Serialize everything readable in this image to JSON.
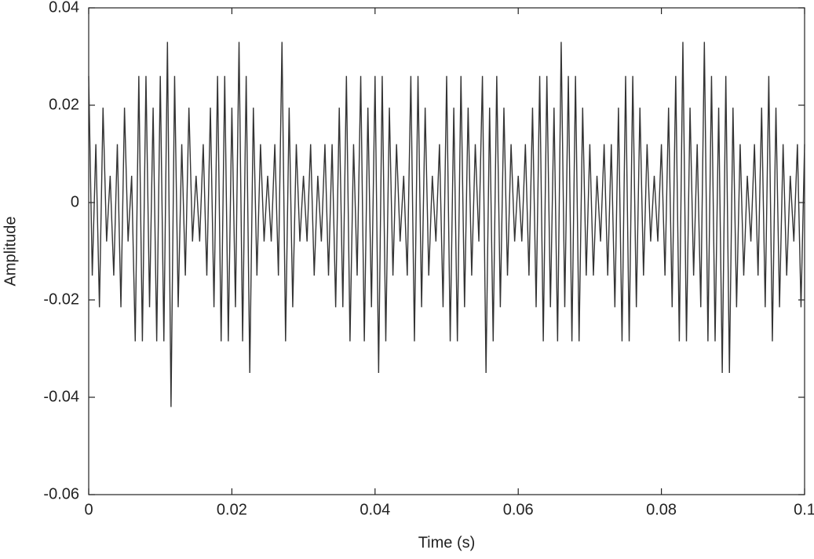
{
  "chart_data": {
    "type": "line",
    "xlabel": "Time (s)",
    "ylabel": "Amplitude",
    "color": "#333333",
    "xlim": [
      0,
      0.1
    ],
    "ylim": [
      -0.06,
      0.04
    ],
    "xticks": [
      0,
      0.02,
      0.04,
      0.06,
      0.08,
      0.1
    ],
    "yticks": [
      -0.06,
      -0.04,
      -0.02,
      0,
      0.02,
      0.04
    ],
    "x": [
      0,
      0.0005,
      0.001,
      0.0015,
      0.002,
      0.0025,
      0.003,
      0.0035,
      0.004,
      0.0045,
      0.005,
      0.0055,
      0.006,
      0.0065,
      0.007,
      0.0075,
      0.008,
      0.0085,
      0.009,
      0.0095,
      0.01,
      0.0105,
      0.011,
      0.0115,
      0.012,
      0.0125,
      0.013,
      0.0135,
      0.014,
      0.0145,
      0.015,
      0.0155,
      0.016,
      0.0165,
      0.017,
      0.0175,
      0.018,
      0.0185,
      0.019,
      0.0195,
      0.02,
      0.0205,
      0.021,
      0.0215,
      0.022,
      0.0225,
      0.023,
      0.0235,
      0.024,
      0.0245,
      0.025,
      0.0255,
      0.026,
      0.0265,
      0.027,
      0.0275,
      0.028,
      0.0285,
      0.029,
      0.0295,
      0.03,
      0.0305,
      0.031,
      0.0315,
      0.032,
      0.0325,
      0.033,
      0.0335,
      0.034,
      0.0345,
      0.035,
      0.0355,
      0.036,
      0.0365,
      0.037,
      0.0375,
      0.038,
      0.0385,
      0.039,
      0.0395,
      0.04,
      0.0405,
      0.041,
      0.0415,
      0.042,
      0.0425,
      0.043,
      0.0435,
      0.044,
      0.0445,
      0.045,
      0.0455,
      0.046,
      0.0465,
      0.047,
      0.0475,
      0.048,
      0.0485,
      0.049,
      0.0495,
      0.05,
      0.0505,
      0.051,
      0.0515,
      0.052,
      0.0525,
      0.053,
      0.0535,
      0.054,
      0.0545,
      0.055,
      0.0555,
      0.056,
      0.0565,
      0.057,
      0.0575,
      0.058,
      0.0585,
      0.059,
      0.0595,
      0.06,
      0.0605,
      0.061,
      0.0615,
      0.062,
      0.0625,
      0.063,
      0.0635,
      0.064,
      0.0645,
      0.065,
      0.0655,
      0.066,
      0.0665,
      0.067,
      0.0675,
      0.068,
      0.0685,
      0.069,
      0.0695,
      0.07,
      0.0705,
      0.071,
      0.0715,
      0.072,
      0.0725,
      0.073,
      0.0735,
      0.074,
      0.0745,
      0.075,
      0.0755,
      0.076,
      0.0765,
      0.077,
      0.0775,
      0.078,
      0.0785,
      0.079,
      0.0795,
      0.08,
      0.0805,
      0.081,
      0.0815,
      0.082,
      0.0825,
      0.083,
      0.0835,
      0.084,
      0.0845,
      0.085,
      0.0855,
      0.086,
      0.0865,
      0.087,
      0.0875,
      0.088,
      0.0885,
      0.089,
      0.0895,
      0.09,
      0.0905,
      0.091,
      0.0915,
      0.092,
      0.0925,
      0.093,
      0.0935,
      0.094,
      0.0945,
      0.095,
      0.0955,
      0.096,
      0.0965,
      0.097,
      0.0975,
      0.098,
      0.0985,
      0.099,
      0.0995,
      0.1
    ],
    "values": [
      0.026,
      -0.015,
      0.012,
      -0.0215,
      0.0195,
      -0.008,
      0.0055,
      -0.015,
      0.012,
      -0.0215,
      0.0195,
      -0.008,
      0.0055,
      -0.0285,
      0.026,
      -0.0285,
      0.026,
      -0.0215,
      0.0195,
      -0.0285,
      0.026,
      -0.0285,
      0.033,
      -0.042,
      0.026,
      -0.0215,
      0.012,
      -0.015,
      0.0195,
      -0.008,
      0.0055,
      -0.008,
      0.012,
      -0.015,
      0.0195,
      -0.0215,
      0.026,
      -0.0285,
      0.026,
      -0.0285,
      0.0195,
      -0.0215,
      0.033,
      -0.0285,
      0.026,
      -0.035,
      0.0195,
      -0.015,
      0.012,
      -0.008,
      0.0055,
      -0.008,
      0.012,
      -0.015,
      0.033,
      -0.0285,
      0.0195,
      -0.0215,
      0.012,
      -0.008,
      0.0055,
      -0.008,
      0.012,
      -0.015,
      0.0055,
      -0.008,
      0.012,
      -0.015,
      0.012,
      -0.0215,
      0.0195,
      -0.0215,
      0.026,
      -0.0285,
      0.012,
      -0.015,
      0.026,
      -0.0285,
      0.0195,
      -0.0215,
      0.026,
      -0.035,
      0.026,
      -0.0285,
      0.0195,
      -0.015,
      0.012,
      -0.008,
      0.0055,
      -0.015,
      0.026,
      -0.0285,
      0.026,
      -0.0215,
      0.0195,
      -0.015,
      0.0055,
      -0.008,
      0.012,
      -0.0215,
      0.026,
      -0.0285,
      0.0195,
      -0.0285,
      0.026,
      -0.0215,
      0.0195,
      -0.015,
      0.012,
      -0.008,
      0.026,
      -0.035,
      0.0195,
      -0.0285,
      0.026,
      -0.0215,
      0.0195,
      -0.015,
      0.012,
      -0.008,
      0.0055,
      -0.008,
      0.012,
      -0.015,
      0.0195,
      -0.0215,
      0.026,
      -0.0285,
      0.026,
      -0.0215,
      0.0195,
      -0.0285,
      0.033,
      -0.0215,
      0.026,
      -0.0285,
      0.026,
      -0.0285,
      0.0195,
      -0.015,
      0.012,
      -0.015,
      0.0055,
      -0.008,
      0.012,
      -0.015,
      0.012,
      -0.0215,
      0.0195,
      -0.0285,
      0.026,
      -0.0285,
      0.026,
      -0.0215,
      0.0195,
      -0.015,
      0.012,
      -0.008,
      0.0055,
      -0.008,
      0.012,
      -0.015,
      0.0195,
      -0.0215,
      0.026,
      -0.0285,
      0.033,
      -0.0285,
      0.0195,
      -0.015,
      0.012,
      -0.0215,
      0.033,
      -0.0285,
      0.026,
      -0.0285,
      0.0195,
      -0.035,
      0.026,
      -0.035,
      0.0195,
      -0.0215,
      0.012,
      -0.015,
      0.0055,
      -0.008,
      0.012,
      -0.015,
      0.0195,
      -0.0215,
      0.026,
      -0.0285,
      0.0195,
      -0.0215,
      0.012,
      -0.015,
      0.0055,
      -0.008,
      0.012,
      -0.0215,
      0.012
    ]
  }
}
